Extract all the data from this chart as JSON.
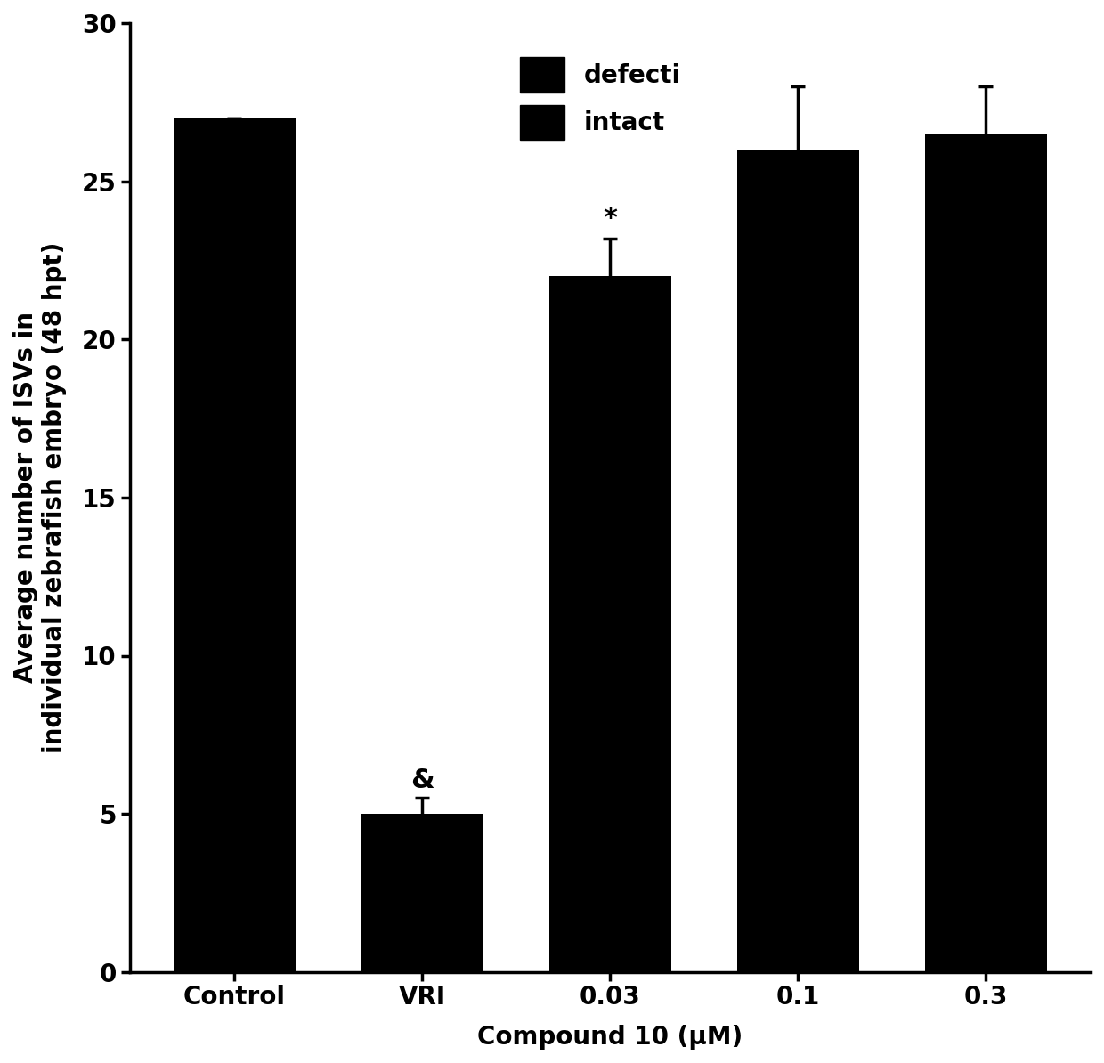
{
  "categories": [
    "Control",
    "VRI",
    "0.03",
    "0.1",
    "0.3"
  ],
  "values": [
    27.0,
    5.0,
    22.0,
    26.0,
    26.5
  ],
  "errors": [
    0.0,
    0.5,
    1.2,
    2.0,
    1.5
  ],
  "bar_color": "#000000",
  "bar_width": 0.65,
  "ylim": [
    0,
    30
  ],
  "yticks": [
    0,
    5,
    10,
    15,
    20,
    25,
    30
  ],
  "ylabel": "Average number of ISVs in\nindividual zebrafish embryo (48 hpt)",
  "xlabel": "Compound 10 (μM)",
  "legend_labels": [
    "defecti",
    "intact"
  ],
  "background_color": "#ffffff",
  "ylabel_fontsize": 20,
  "xlabel_fontsize": 20,
  "tick_fontsize": 20,
  "legend_fontsize": 20,
  "spine_linewidth": 2.5
}
